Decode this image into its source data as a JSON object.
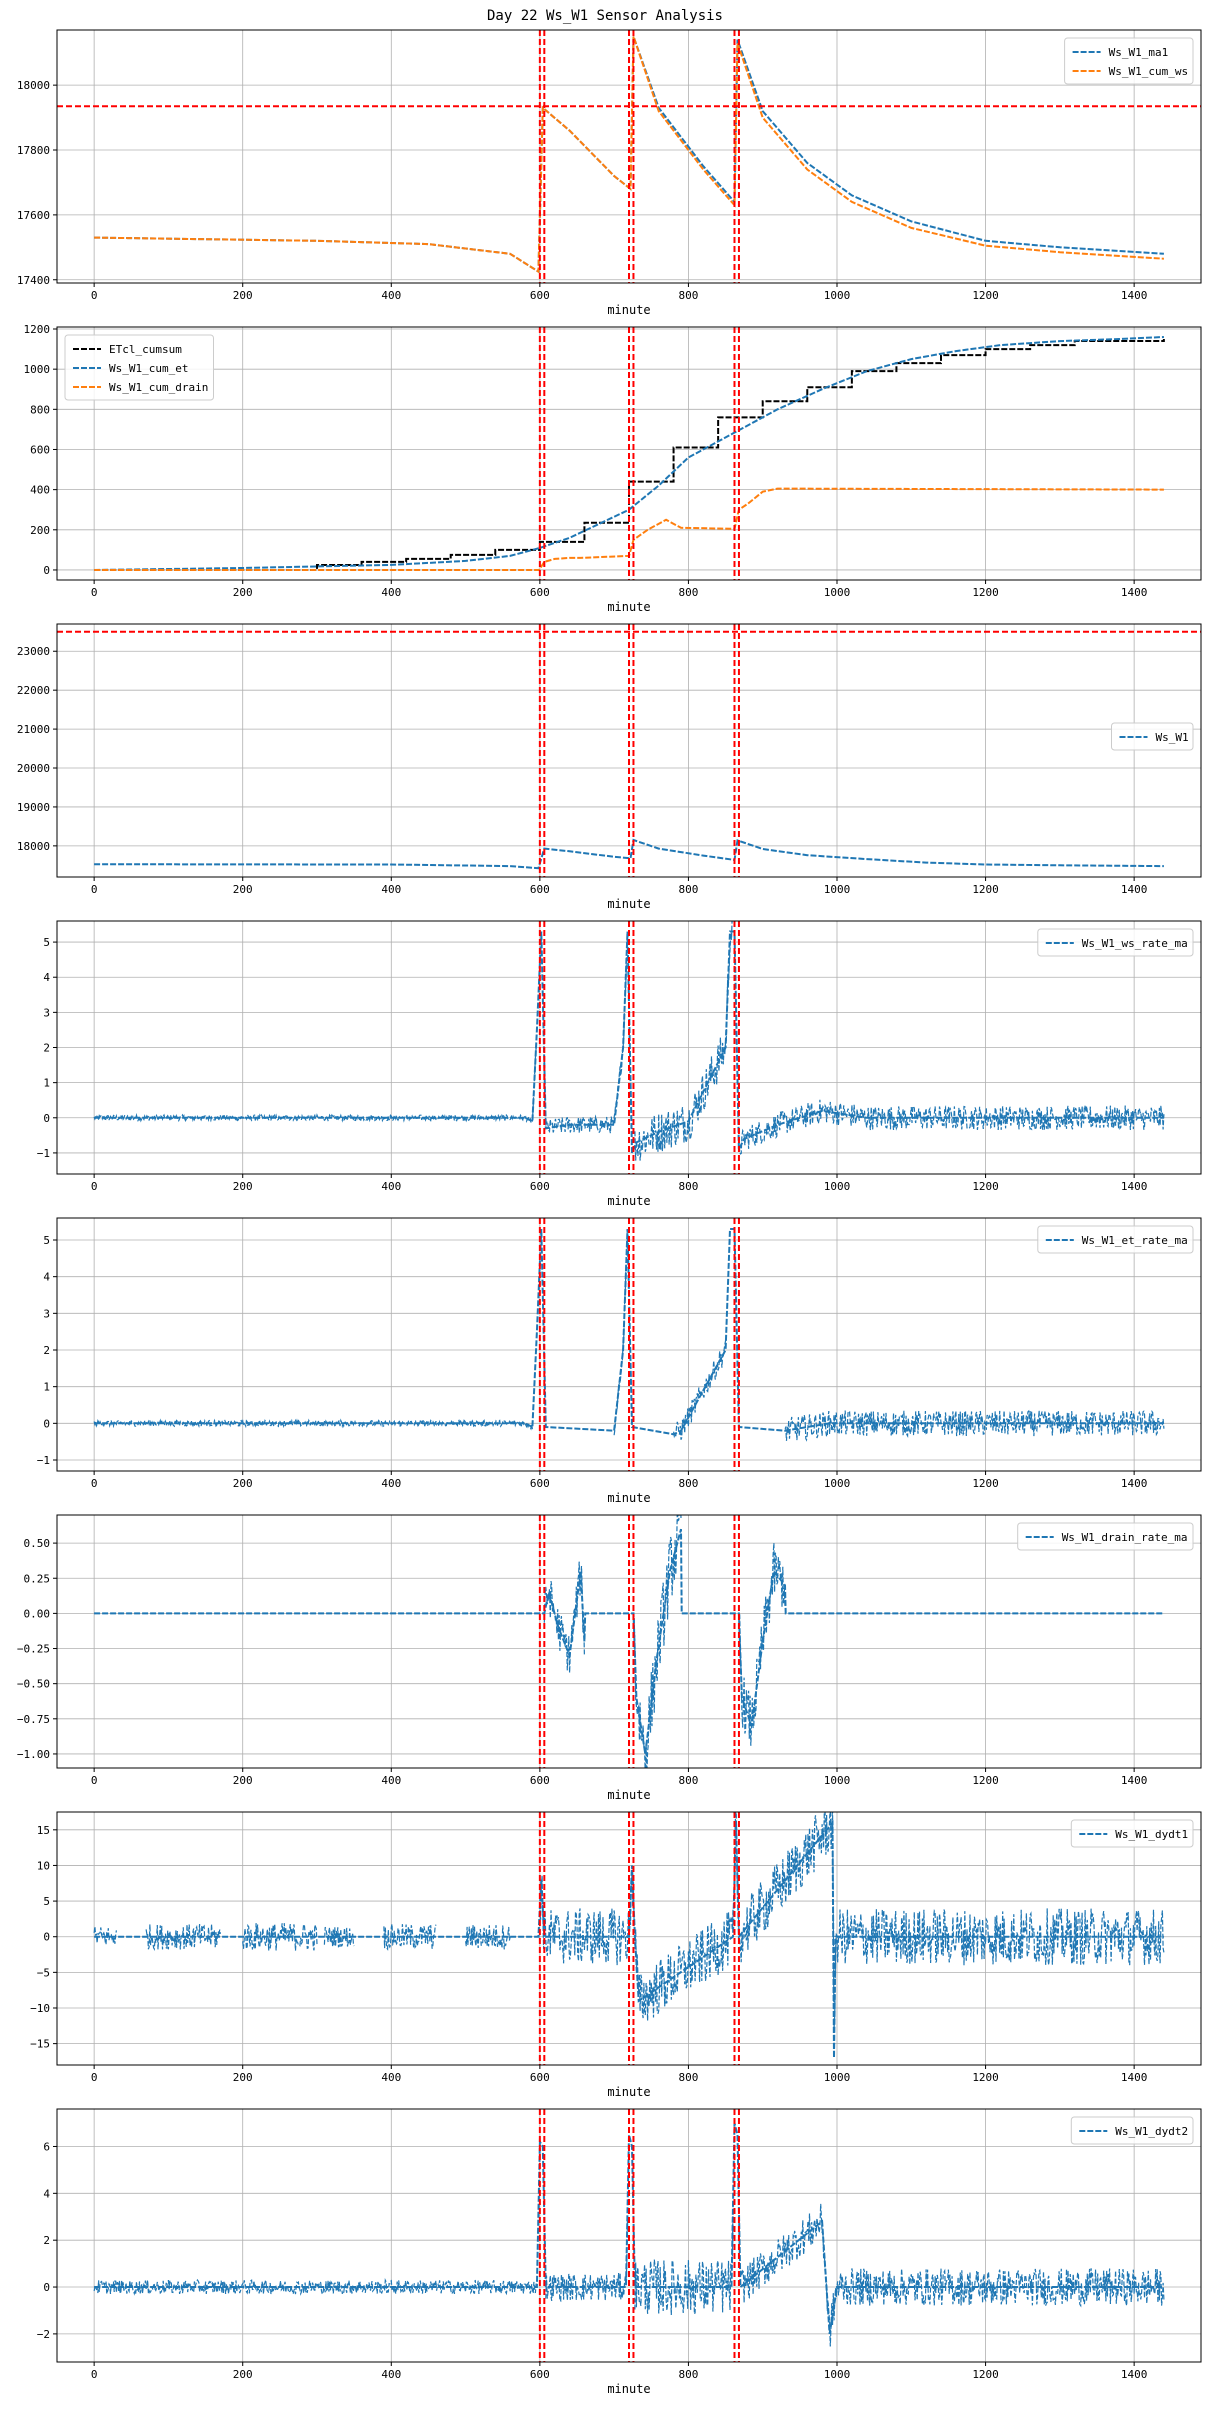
{
  "title": "Day 22 Ws_W1 Sensor Analysis",
  "colors": {
    "blue": "#1f77b4",
    "orange": "#ff7f0e",
    "black": "#000000",
    "red": "#ff0000",
    "grid": "#b0b0b0"
  },
  "chart_data": [
    {
      "type": "line",
      "xlabel": "minute",
      "xlim": [
        -50,
        1490
      ],
      "ylim": [
        17390,
        18170
      ],
      "xticks": [
        0,
        200,
        400,
        600,
        800,
        1000,
        1200,
        1400
      ],
      "yticks": [
        17400,
        17600,
        17800,
        18000
      ],
      "legend_position": "upper right",
      "vlines": [
        600,
        606,
        720,
        726,
        862,
        868
      ],
      "hlines": [
        17935
      ],
      "series": [
        {
          "name": "Ws_W1_ma1",
          "color": "blue",
          "x": [
            0,
            150,
            300,
            450,
            560,
            598,
            604,
            640,
            700,
            722,
            726,
            760,
            820,
            862,
            866,
            900,
            960,
            1020,
            1100,
            1200,
            1300,
            1440
          ],
          "y": [
            17530,
            17525,
            17520,
            17510,
            17480,
            17425,
            17930,
            17860,
            17720,
            17680,
            18150,
            17930,
            17750,
            17640,
            18140,
            17920,
            17760,
            17660,
            17580,
            17520,
            17500,
            17480
          ]
        },
        {
          "name": "Ws_W1_cum_ws",
          "color": "orange",
          "x": [
            0,
            150,
            300,
            450,
            560,
            598,
            604,
            640,
            700,
            722,
            726,
            760,
            820,
            862,
            866,
            900,
            960,
            1020,
            1100,
            1200,
            1300,
            1440
          ],
          "y": [
            17530,
            17525,
            17520,
            17510,
            17480,
            17425,
            17930,
            17860,
            17720,
            17680,
            18150,
            17920,
            17740,
            17630,
            18130,
            17900,
            17740,
            17640,
            17560,
            17505,
            17485,
            17465
          ]
        }
      ]
    },
    {
      "type": "line",
      "xlabel": "minute",
      "xlim": [
        -50,
        1490
      ],
      "ylim": [
        -50,
        1210
      ],
      "xticks": [
        0,
        200,
        400,
        600,
        800,
        1000,
        1200,
        1400
      ],
      "yticks": [
        0,
        200,
        400,
        600,
        800,
        1000,
        1200
      ],
      "legend_position": "upper left",
      "vlines": [
        600,
        606,
        720,
        726,
        862,
        868
      ],
      "hlines": [],
      "series": [
        {
          "name": "ETcl_cumsum",
          "color": "black",
          "step": true,
          "x": [
            0,
            300,
            360,
            420,
            480,
            540,
            600,
            660,
            720,
            780,
            840,
            900,
            960,
            1020,
            1080,
            1140,
            1200,
            1260,
            1320,
            1440
          ],
          "y": [
            0,
            25,
            40,
            55,
            75,
            100,
            140,
            235,
            440,
            610,
            760,
            840,
            910,
            990,
            1030,
            1070,
            1100,
            1120,
            1140,
            1150
          ]
        },
        {
          "name": "Ws_W1_cum_et",
          "color": "blue",
          "x": [
            0,
            200,
            400,
            500,
            560,
            600,
            640,
            680,
            720,
            760,
            800,
            860,
            920,
            980,
            1040,
            1100,
            1160,
            1220,
            1300,
            1380,
            1440
          ],
          "y": [
            0,
            10,
            25,
            45,
            70,
            110,
            160,
            230,
            300,
            420,
            560,
            680,
            800,
            900,
            990,
            1050,
            1090,
            1120,
            1140,
            1150,
            1160
          ]
        },
        {
          "name": "Ws_W1_cum_drain",
          "color": "orange",
          "x": [
            0,
            599,
            606,
            620,
            640,
            655,
            720,
            726,
            745,
            770,
            790,
            862,
            868,
            880,
            900,
            920,
            1440
          ],
          "y": [
            0,
            0,
            40,
            55,
            60,
            60,
            70,
            150,
            200,
            250,
            210,
            205,
            300,
            330,
            390,
            405,
            400
          ]
        }
      ]
    },
    {
      "type": "line",
      "xlabel": "minute",
      "xlim": [
        -50,
        1490
      ],
      "ylim": [
        17200,
        23700
      ],
      "xticks": [
        0,
        200,
        400,
        600,
        800,
        1000,
        1200,
        1400
      ],
      "yticks": [
        18000,
        19000,
        20000,
        21000,
        22000,
        23000
      ],
      "legend_position": "center right",
      "vlines": [
        600,
        606,
        720,
        726,
        862,
        868
      ],
      "hlines": [
        23500
      ],
      "series": [
        {
          "name": "Ws_W1",
          "color": "blue",
          "x": [
            0,
            200,
            400,
            560,
            598,
            606,
            640,
            700,
            722,
            726,
            760,
            820,
            862,
            866,
            900,
            960,
            1040,
            1120,
            1200,
            1300,
            1440
          ],
          "y": [
            17530,
            17525,
            17520,
            17480,
            17425,
            17930,
            17860,
            17720,
            17680,
            18150,
            17930,
            17750,
            17640,
            18140,
            17920,
            17760,
            17660,
            17570,
            17520,
            17500,
            17480
          ]
        }
      ]
    },
    {
      "type": "line",
      "xlabel": "minute",
      "xlim": [
        -50,
        1490
      ],
      "ylim": [
        -1.6,
        5.6
      ],
      "xticks": [
        0,
        200,
        400,
        600,
        800,
        1000,
        1200,
        1400
      ],
      "yticks": [
        -1,
        0,
        1,
        2,
        3,
        4,
        5
      ],
      "legend_position": "upper right",
      "vlines": [
        600,
        606,
        720,
        726,
        862,
        868
      ],
      "hlines": [],
      "noise": {
        "ranges": [
          [
            0,
            595
          ],
          [
            606,
            718
          ],
          [
            728,
            860
          ],
          [
            868,
            1440
          ]
        ],
        "amplitude": [
          0.08,
          0.25,
          0.6,
          0.35
        ]
      },
      "series": [
        {
          "name": "Ws_W1_ws_rate_ma",
          "color": "blue",
          "x": [
            0,
            580,
            590,
            596,
            602,
            608,
            640,
            700,
            712,
            718,
            724,
            730,
            760,
            800,
            850,
            856,
            862,
            868,
            875,
            920,
            980,
            1040,
            1440
          ],
          "y": [
            0,
            0,
            -0.1,
            2.5,
            5.3,
            -0.3,
            -0.2,
            -0.2,
            2.0,
            5.3,
            -1.0,
            -0.7,
            -0.4,
            -0.1,
            2.0,
            5.3,
            5.3,
            -0.9,
            -0.6,
            -0.2,
            0.2,
            0,
            0
          ]
        }
      ]
    },
    {
      "type": "line",
      "xlabel": "minute",
      "xlim": [
        -50,
        1490
      ],
      "ylim": [
        -1.3,
        5.6
      ],
      "xticks": [
        0,
        200,
        400,
        600,
        800,
        1000,
        1200,
        1400
      ],
      "yticks": [
        -1,
        0,
        1,
        2,
        3,
        4,
        5
      ],
      "legend_position": "upper right",
      "vlines": [
        600,
        606,
        720,
        726,
        862,
        868
      ],
      "hlines": [],
      "noise": {
        "ranges": [
          [
            0,
            590
          ],
          [
            700,
            718
          ],
          [
            780,
            850
          ],
          [
            930,
            1440
          ]
        ],
        "amplitude": [
          0.08,
          0.2,
          0.3,
          0.35
        ]
      },
      "series": [
        {
          "name": "Ws_W1_et_rate_ma",
          "color": "blue",
          "x": [
            0,
            580,
            590,
            596,
            602,
            608,
            700,
            712,
            718,
            724,
            780,
            790,
            850,
            856,
            862,
            868,
            930,
            990,
            1060,
            1440
          ],
          "y": [
            0,
            0,
            -0.1,
            2.5,
            5.3,
            -0.1,
            -0.2,
            2.0,
            5.3,
            -0.1,
            -0.3,
            -0.2,
            2.0,
            5.3,
            5.3,
            -0.1,
            -0.2,
            0,
            0,
            0
          ]
        }
      ]
    },
    {
      "type": "line",
      "xlabel": "minute",
      "xlim": [
        -50,
        1490
      ],
      "ylim": [
        -1.1,
        0.7
      ],
      "xticks": [
        0,
        200,
        400,
        600,
        800,
        1000,
        1200,
        1400
      ],
      "yticks": [
        -1.0,
        -0.75,
        -0.5,
        -0.25,
        0.0,
        0.25,
        0.5
      ],
      "ytick_labels": [
        "−1.00",
        "−0.75",
        "−0.50",
        "−0.25",
        "0.00",
        "0.25",
        "0.50"
      ],
      "legend_position": "upper right",
      "vlines": [
        600,
        606,
        720,
        726,
        862,
        868
      ],
      "hlines": [],
      "noise": {
        "ranges": [
          [
            606,
            660
          ],
          [
            726,
            790
          ],
          [
            868,
            930
          ]
        ],
        "amplitude": [
          0.15,
          0.25,
          0.2
        ]
      },
      "series": [
        {
          "name": "Ws_W1_drain_rate_ma",
          "color": "blue",
          "x": [
            0,
            606,
            612,
            625,
            640,
            655,
            660,
            661,
            726,
            730,
            742,
            758,
            775,
            790,
            791,
            868,
            872,
            885,
            900,
            915,
            930,
            931,
            1440
          ],
          "y": [
            0,
            0,
            0.15,
            -0.1,
            -0.3,
            0.3,
            -0.2,
            0,
            0,
            -0.6,
            -1.0,
            -0.3,
            0.3,
            0.6,
            0,
            0,
            -0.6,
            -0.8,
            -0.2,
            0.3,
            0.2,
            0,
            0
          ]
        }
      ]
    },
    {
      "type": "line",
      "xlabel": "minute",
      "xlim": [
        -50,
        1490
      ],
      "ylim": [
        -18,
        17.5
      ],
      "xticks": [
        0,
        200,
        400,
        600,
        800,
        1000,
        1200,
        1400
      ],
      "yticks": [
        -15,
        -10,
        -5,
        0,
        5,
        10,
        15
      ],
      "ytick_labels": [
        "−15",
        "−10",
        "−5",
        "0",
        "5",
        "10",
        "15"
      ],
      "legend_position": "upper right",
      "vlines": [
        600,
        606,
        720,
        726,
        862,
        868
      ],
      "hlines": [],
      "noise": {
        "ranges": [
          [
            0,
            30
          ],
          [
            70,
            170
          ],
          [
            200,
            300
          ],
          [
            310,
            350
          ],
          [
            390,
            460
          ],
          [
            500,
            560
          ],
          [
            600,
            1440
          ]
        ],
        "amplitude": [
          1.5,
          1.8,
          2.0,
          1.5,
          1.8,
          1.8,
          4.0
        ]
      },
      "series": [
        {
          "name": "Ws_W1_dydt1",
          "color": "blue",
          "x": [
            0,
            598,
            602,
            606,
            720,
            724,
            728,
            733,
            860,
            864,
            868,
            994,
            996,
            998,
            1000,
            1440
          ],
          "y": [
            0,
            0,
            8,
            0,
            0,
            10,
            0,
            -9,
            0,
            16,
            0,
            16,
            -17,
            0,
            0,
            0
          ]
        }
      ]
    },
    {
      "type": "line",
      "xlabel": "minute",
      "xlim": [
        -50,
        1490
      ],
      "ylim": [
        -3.2,
        7.6
      ],
      "xticks": [
        0,
        200,
        400,
        600,
        800,
        1000,
        1200,
        1400
      ],
      "yticks": [
        -2,
        0,
        2,
        4,
        6
      ],
      "ytick_labels": [
        "−2",
        "0",
        "2",
        "4",
        "6"
      ],
      "legend_position": "upper right",
      "vlines": [
        600,
        606,
        720,
        726,
        862,
        868
      ],
      "hlines": [],
      "noise": {
        "ranges": [
          [
            0,
            595
          ],
          [
            608,
            718
          ],
          [
            728,
            860
          ],
          [
            870,
            1440
          ]
        ],
        "amplitude": [
          0.3,
          0.6,
          1.2,
          0.8
        ]
      },
      "series": [
        {
          "name": "Ws_W1_dydt2",
          "color": "blue",
          "x": [
            0,
            596,
            600,
            604,
            608,
            716,
            720,
            724,
            728,
            858,
            862,
            866,
            870,
            980,
            990,
            1000,
            1440
          ],
          "y": [
            0,
            0,
            6.2,
            6.0,
            0,
            0,
            6.5,
            6.0,
            0,
            0,
            7.0,
            6.5,
            0,
            2.8,
            -2.0,
            0,
            0
          ]
        }
      ]
    }
  ]
}
